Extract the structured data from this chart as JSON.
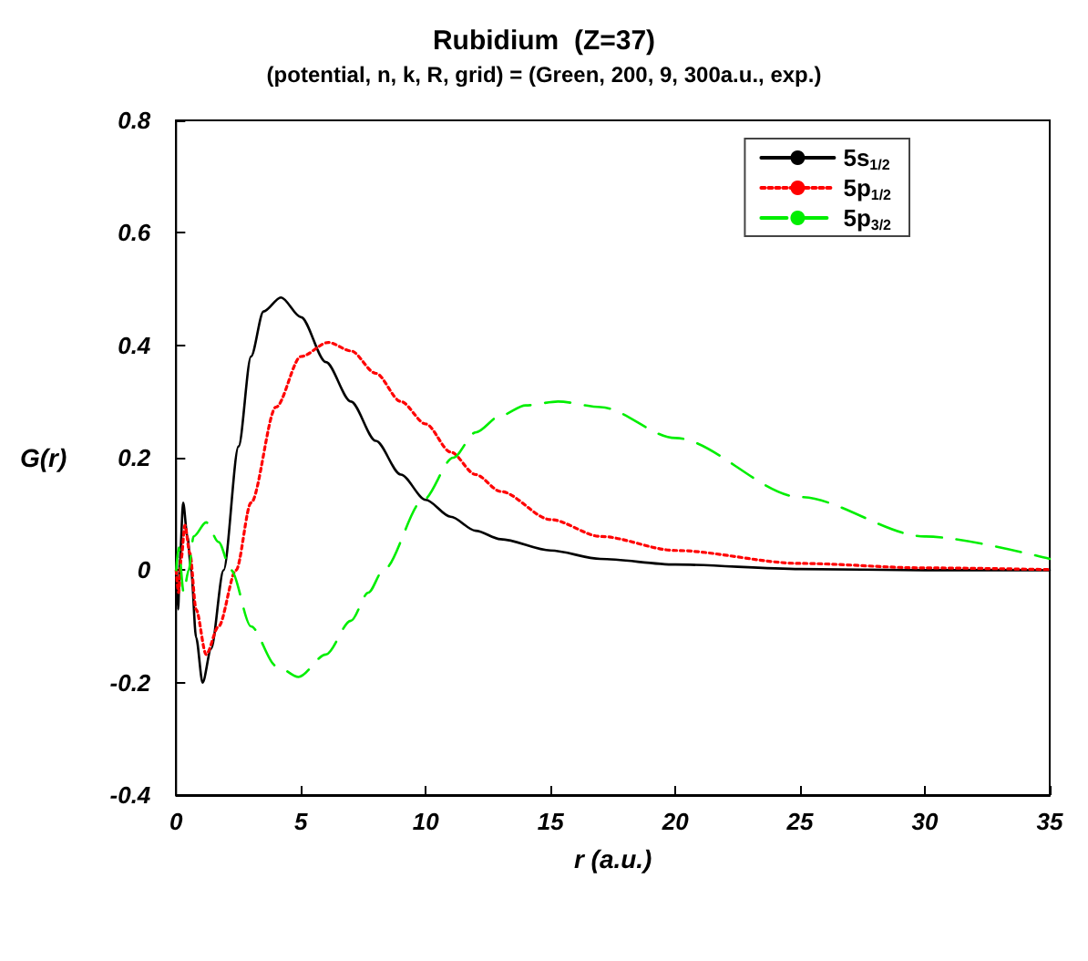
{
  "chart_data": {
    "type": "line",
    "title": "Rubidium  (Z=37)",
    "subtitle": "(potential, n, k, R, grid) = (Green, 200, 9, 300a.u., exp.)",
    "xlabel": "r (a.u.)",
    "ylabel": "G(r)",
    "xlim": [
      0,
      35
    ],
    "xticks": [
      0,
      5,
      10,
      15,
      20,
      25,
      30,
      35
    ],
    "ylim": [
      -0.4,
      0.8
    ],
    "yticks": [
      -0.4,
      -0.2,
      0,
      0.2,
      0.4,
      0.6,
      0.8
    ],
    "grid": false,
    "legend": "top right",
    "marker": "none",
    "series": [
      {
        "name": "5s$_{1/2}$",
        "color": "#000000",
        "line_style": "solid",
        "x": [
          0,
          0.08,
          0.15,
          0.28,
          0.45,
          0.6,
          0.8,
          1.06,
          1.4,
          1.9,
          2.5,
          3,
          3.5,
          4.2,
          5,
          6,
          7,
          8,
          9,
          10,
          11,
          12,
          13,
          15,
          17,
          20,
          25,
          30,
          35
        ],
        "values": [
          0,
          -0.07,
          0.02,
          0.12,
          0.06,
          0,
          -0.12,
          -0.2,
          -0.14,
          0,
          0.22,
          0.38,
          0.46,
          0.485,
          0.45,
          0.37,
          0.3,
          0.23,
          0.17,
          0.125,
          0.095,
          0.07,
          0.055,
          0.035,
          0.02,
          0.01,
          0.002,
          0,
          0
        ]
      },
      {
        "name": "5p$_{1/2}$",
        "color": "#ff0000",
        "line_style": "dotted",
        "x": [
          0,
          0.1,
          0.2,
          0.35,
          0.55,
          0.8,
          1.2,
          1.7,
          2.4,
          3,
          4,
          5,
          6.1,
          7,
          8,
          9,
          10,
          11,
          12,
          13,
          15,
          17,
          20,
          25,
          30,
          35
        ],
        "values": [
          0,
          -0.04,
          0.02,
          0.08,
          0.03,
          -0.07,
          -0.15,
          -0.1,
          0,
          0.12,
          0.29,
          0.38,
          0.405,
          0.39,
          0.35,
          0.3,
          0.26,
          0.21,
          0.17,
          0.14,
          0.09,
          0.06,
          0.035,
          0.012,
          0.004,
          0.001
        ]
      },
      {
        "name": "5p$_{3/2}$",
        "color": "#00ee00",
        "line_style": "dashed",
        "x": [
          0,
          0.1,
          0.3,
          0.5,
          0.7,
          1.2,
          1.7,
          2.2,
          3,
          4,
          4.9,
          6,
          7,
          7.7,
          8.3,
          9.9,
          11.1,
          12,
          13,
          14,
          15.3,
          17,
          20,
          25,
          30,
          35
        ],
        "values": [
          0,
          0.04,
          -0.04,
          0,
          0.06,
          0.085,
          0.05,
          0,
          -0.1,
          -0.17,
          -0.19,
          -0.15,
          -0.09,
          -0.04,
          0,
          0.125,
          0.2,
          0.245,
          0.275,
          0.293,
          0.3,
          0.29,
          0.235,
          0.13,
          0.06,
          0.02
        ]
      }
    ]
  }
}
